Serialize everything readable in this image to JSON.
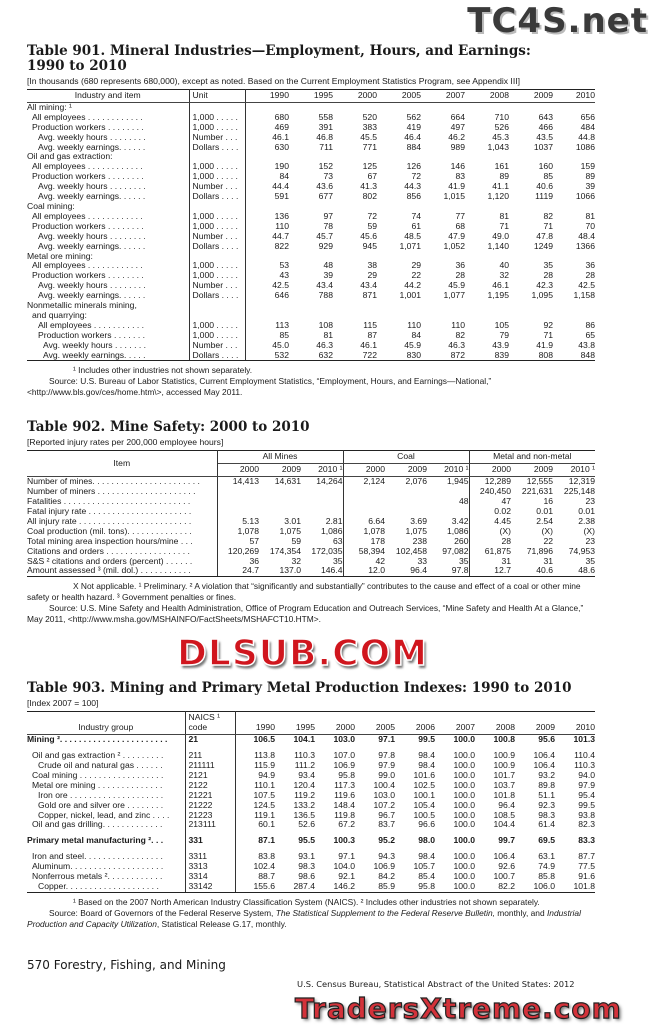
{
  "watermarks": {
    "top": "TC4S.net",
    "middle": "DLSUB.COM",
    "bottom": "TradersXtreme.com"
  },
  "t901": {
    "title1": "Table 901. Mineral Industries—Employment, Hours, and Earnings:",
    "title2": "1990 to 2010",
    "subtitle": "[In thousands (680 represents 680,000), except as noted. Based on the Current Employment Statistics Program, see Appendix III]",
    "headers": [
      "Industry and item",
      "Unit",
      "1990",
      "1995",
      "2000",
      "2005",
      "2007",
      "2008",
      "2009",
      "2010"
    ],
    "rows": [
      {
        "label": "All mining: ¹",
        "lvl": 0,
        "group": true
      },
      {
        "label": "All employees . . . . . . . . . . . .",
        "unit": "1,000 . . . . .",
        "lvl": 1,
        "v": [
          "680",
          "558",
          "520",
          "562",
          "664",
          "710",
          "643",
          "656"
        ]
      },
      {
        "label": "Production workers . . . . . . . .",
        "unit": "1,000 . . . . .",
        "lvl": 1,
        "v": [
          "469",
          "391",
          "383",
          "419",
          "497",
          "526",
          "466",
          "484"
        ]
      },
      {
        "label": "Avg. weekly hours . . . . . . . .",
        "unit": "Number . . .",
        "lvl": 2,
        "v": [
          "46.1",
          "46.8",
          "45.5",
          "46.4",
          "46.2",
          "45.3",
          "43.5",
          "44.8"
        ]
      },
      {
        "label": "Avg. weekly earnings. . . . . .",
        "unit": "Dollars . . . .",
        "lvl": 2,
        "v": [
          "630",
          "711",
          "771",
          "884",
          "989",
          "1,043",
          "1037",
          "1086"
        ]
      },
      {
        "label": "Oil and gas extraction:",
        "lvl": 0,
        "group": true
      },
      {
        "label": "All employees . . . . . . . . . . . .",
        "unit": "1,000 . . . . .",
        "lvl": 1,
        "v": [
          "190",
          "152",
          "125",
          "126",
          "146",
          "161",
          "160",
          "159"
        ]
      },
      {
        "label": "Production workers . . . . . . . .",
        "unit": "1,000 . . . . .",
        "lvl": 1,
        "v": [
          "84",
          "73",
          "67",
          "72",
          "83",
          "89",
          "85",
          "89"
        ]
      },
      {
        "label": "Avg. weekly hours . . . . . . . .",
        "unit": "Number . . .",
        "lvl": 2,
        "v": [
          "44.4",
          "43.6",
          "41.3",
          "44.3",
          "41.9",
          "41.1",
          "40.6",
          "39"
        ]
      },
      {
        "label": "Avg. weekly earnings. . . . . .",
        "unit": "Dollars . . . .",
        "lvl": 2,
        "v": [
          "591",
          "677",
          "802",
          "856",
          "1,015",
          "1,120",
          "1119",
          "1066"
        ]
      },
      {
        "label": "Coal mining:",
        "lvl": 0,
        "group": true
      },
      {
        "label": "All employees . . . . . . . . . . . .",
        "unit": "1,000 . . . . .",
        "lvl": 1,
        "v": [
          "136",
          "97",
          "72",
          "74",
          "77",
          "81",
          "82",
          "81"
        ]
      },
      {
        "label": "Production workers . . . . . . . .",
        "unit": "1,000 . . . . .",
        "lvl": 1,
        "v": [
          "110",
          "78",
          "59",
          "61",
          "68",
          "71",
          "71",
          "70"
        ]
      },
      {
        "label": "Avg. weekly hours . . . . . . . .",
        "unit": "Number . . .",
        "lvl": 2,
        "v": [
          "44.7",
          "45.7",
          "45.6",
          "48.5",
          "47.9",
          "49.0",
          "47.8",
          "48.4"
        ]
      },
      {
        "label": "Avg. weekly earnings. . . . . .",
        "unit": "Dollars . . . .",
        "lvl": 2,
        "v": [
          "822",
          "929",
          "945",
          "1,071",
          "1,052",
          "1,140",
          "1249",
          "1366"
        ]
      },
      {
        "label": "Metal ore mining:",
        "lvl": 0,
        "group": true
      },
      {
        "label": "All employees . . . . . . . . . . . .",
        "unit": "1,000 . . . . .",
        "lvl": 1,
        "v": [
          "53",
          "48",
          "38",
          "29",
          "36",
          "40",
          "35",
          "36"
        ]
      },
      {
        "label": "Production workers . . . . . . . .",
        "unit": "1,000 . . . . .",
        "lvl": 1,
        "v": [
          "43",
          "39",
          "29",
          "22",
          "28",
          "32",
          "28",
          "28"
        ]
      },
      {
        "label": "Avg. weekly hours . . . . . . . .",
        "unit": "Number . . .",
        "lvl": 2,
        "v": [
          "42.5",
          "43.4",
          "43.4",
          "44.2",
          "45.9",
          "46.1",
          "42.3",
          "42.5"
        ]
      },
      {
        "label": "Avg. weekly earnings. . . . . .",
        "unit": "Dollars . . . .",
        "lvl": 2,
        "v": [
          "646",
          "788",
          "871",
          "1,001",
          "1,077",
          "1,195",
          "1,095",
          "1,158"
        ]
      },
      {
        "label": "Nonmetallic minerals mining,",
        "lvl": 0,
        "group": true
      },
      {
        "label": "and quarrying:",
        "lvl": 1,
        "group": true
      },
      {
        "label": "All employees . . . . . . . . . . .",
        "unit": "1,000 . . . . .",
        "lvl": 2,
        "v": [
          "113",
          "108",
          "115",
          "110",
          "110",
          "105",
          "92",
          "86"
        ]
      },
      {
        "label": "Production workers . . . . . . .",
        "unit": "1,000 . . . . .",
        "lvl": 2,
        "v": [
          "85",
          "81",
          "87",
          "84",
          "82",
          "79",
          "71",
          "65"
        ]
      },
      {
        "label": "Avg. weekly hours . . . . . . .",
        "unit": "Number . . .",
        "lvl": 3,
        "v": [
          "45.0",
          "46.3",
          "46.1",
          "45.9",
          "46.3",
          "43.9",
          "41.9",
          "43.8"
        ]
      },
      {
        "label": "Avg. weekly earnings. . . . .",
        "unit": "Dollars . . . .",
        "lvl": 3,
        "v": [
          "532",
          "632",
          "722",
          "830",
          "872",
          "839",
          "808",
          "848"
        ]
      }
    ],
    "notes": [
      "¹ Includes other industries not shown separately.",
      "Source: U.S. Bureau of Labor Statistics, Current Employment Statistics, “Employment, Hours, and Earnings—National,” <http://www.bls.gov/ces/home.htm\\>, accessed May 2011."
    ]
  },
  "t902": {
    "title": "Table 902. Mine Safety: 2000 to 2010",
    "subtitle": "[Reported injury rates per 200,000 employee hours]",
    "item_header": "Item",
    "groups": [
      "All Mines",
      "Coal",
      "Metal and non-metal"
    ],
    "years": [
      "2000",
      "2009",
      "2010 ¹",
      "2000",
      "2009",
      "2010 ¹",
      "2000",
      "2009",
      "2010 ¹"
    ],
    "rows": [
      {
        "label": "Number of mines. . . . . . . . . . . . . . . . . . . . . . .",
        "v": [
          "14,413",
          "14,631",
          "14,264",
          "2,124",
          "2,076",
          "1,945",
          "12,289",
          "12,555",
          "12,319"
        ]
      },
      {
        "label": "Number of miners . . . . . . . . . . . . . . . . . . . . .",
        "v": [
          "",
          "",
          "",
          "",
          "",
          "",
          "240,450",
          "221,631",
          "225,148"
        ]
      },
      {
        "label": "Fatalities . . . . . . . . . . . . . . . . . . . . . . . . . . .",
        "v": [
          "",
          "",
          "",
          "",
          "",
          "48",
          "47",
          "16",
          "23"
        ]
      },
      {
        "label": "Fatal injury rate . . . . . . . . . . . . . . . . . . . . . .",
        "v": [
          "",
          "",
          "",
          "",
          "",
          "",
          "0.02",
          "0.01",
          "0.01"
        ]
      },
      {
        "label": "All injury rate . . . . . . . . . . . . . . . . . . . . . . . .",
        "v": [
          "5.13",
          "3.01",
          "2.81",
          "6.64",
          "3.69",
          "3.42",
          "4.45",
          "2.54",
          "2.38"
        ]
      },
      {
        "label": "Coal production (mil. tons). . . . . . . . . . . . . .",
        "v": [
          "1,078",
          "1,075",
          "1,086",
          "1,078",
          "1,075",
          "1,086",
          "(X)",
          "(X)",
          "(X)"
        ]
      },
      {
        "label": "Total mining area inspection hours/mine . . .",
        "v": [
          "57",
          "59",
          "63",
          "178",
          "238",
          "260",
          "28",
          "22",
          "23"
        ]
      },
      {
        "label": "Citations and orders  . . . . . . . . . . . . . . . . . .",
        "v": [
          "120,269",
          "174,354",
          "172,035",
          "58,394",
          "102,458",
          "97,082",
          "61,875",
          "71,896",
          "74,953"
        ]
      },
      {
        "label": "S&S ² citations and orders (percent) . . . . . .",
        "v": [
          "36",
          "32",
          "35",
          "42",
          "33",
          "35",
          "31",
          "31",
          "35"
        ]
      },
      {
        "label": "Amount assessed ³ (mil. dol.) . . . . . . . . . . .",
        "v": [
          "24.7",
          "137.0",
          "146.4",
          "12.0",
          "96.4",
          "97.8",
          "12.7",
          "40.6",
          "48.6"
        ]
      }
    ],
    "notes": [
      "X Not applicable. ¹ Preliminary. ² A violation that “significantly and substantially” contributes to the cause and effect of a coal or other mine safety or health hazard. ³ Government penalties or fines.",
      "Source: U.S. Mine Safety and Health Administration, Office of Program Education and Outreach Services, “Mine Safety and Health At a Glance,” May 2011, <http://www.msha.gov/MSHAINFO/FactSheets/MSHAFCT10.HTM>."
    ]
  },
  "t903": {
    "title": "Table 903. Mining and Primary Metal Production Indexes: 1990 to 2010",
    "subtitle": "[Index 2007 = 100]",
    "headers": [
      "Industry group",
      "NAICS ¹ code",
      "1990",
      "1995",
      "2000",
      "2005",
      "2006",
      "2007",
      "2008",
      "2009",
      "2010"
    ],
    "rows": [
      {
        "label": "Mining ². . . . . . . . . . . . . . . . . . . . . . .",
        "code": "21",
        "lvl": 0,
        "bold": true,
        "v": [
          "106.5",
          "104.1",
          "103.0",
          "97.1",
          "99.5",
          "100.0",
          "100.8",
          "95.6",
          "101.3"
        ]
      },
      {
        "gap": true
      },
      {
        "label": "Oil and gas extraction ² . . . . . . . . .",
        "code": "211",
        "lvl": 1,
        "v": [
          "113.8",
          "110.3",
          "107.0",
          "97.8",
          "98.4",
          "100.0",
          "100.9",
          "106.4",
          "110.4"
        ]
      },
      {
        "label": "Crude oil and natural gas  . . . . . .",
        "code": "211111",
        "lvl": 2,
        "v": [
          "115.9",
          "111.2",
          "106.9",
          "97.9",
          "98.4",
          "100.0",
          "100.9",
          "106.4",
          "110.3"
        ]
      },
      {
        "label": "Coal mining . . . . . . . . . . . . . . . . . .",
        "code": "2121",
        "lvl": 1,
        "v": [
          "94.9",
          "93.4",
          "95.8",
          "99.0",
          "101.6",
          "100.0",
          "101.7",
          "93.2",
          "94.0"
        ]
      },
      {
        "label": "Metal ore mining . . . . . . . . . . . . . .",
        "code": "2122",
        "lvl": 1,
        "v": [
          "110.1",
          "120.4",
          "117.3",
          "100.4",
          "102.5",
          "100.0",
          "103.7",
          "89.8",
          "97.9"
        ]
      },
      {
        "label": "Iron ore  . . . . . . . . . . . . . . . . . . . .",
        "code": "21221",
        "lvl": 2,
        "v": [
          "107.5",
          "119.2",
          "119.6",
          "103.0",
          "100.1",
          "100.0",
          "101.8",
          "51.1",
          "95.4"
        ]
      },
      {
        "label": "Gold ore and silver ore  . . . . . . . .",
        "code": "21222",
        "lvl": 2,
        "v": [
          "124.5",
          "133.2",
          "148.4",
          "107.2",
          "105.4",
          "100.0",
          "96.4",
          "92.3",
          "99.5"
        ]
      },
      {
        "label": "Copper, nickel, lead, and zinc . . . .",
        "code": "21223",
        "lvl": 2,
        "v": [
          "119.1",
          "136.5",
          "119.8",
          "96.7",
          "100.5",
          "100.0",
          "108.5",
          "98.3",
          "93.8"
        ]
      },
      {
        "label": "Oil and gas drilling. . . . . . . . . . . . .",
        "code": "213111",
        "lvl": 1,
        "v": [
          "60.1",
          "52.6",
          "67.2",
          "83.7",
          "96.6",
          "100.0",
          "104.4",
          "61.4",
          "82.3"
        ]
      },
      {
        "gap": true
      },
      {
        "label": "Primary metal manufacturing ². . .",
        "code": "331",
        "lvl": 0,
        "bold": true,
        "v": [
          "87.1",
          "95.5",
          "100.3",
          "95.2",
          "98.0",
          "100.0",
          "99.7",
          "69.5",
          "83.3"
        ]
      },
      {
        "gap": true
      },
      {
        "label": "Iron and steel. . . . . . . . . . . . . . . . .",
        "code": "3311",
        "lvl": 1,
        "v": [
          "83.8",
          "93.1",
          "97.1",
          "94.3",
          "98.4",
          "100.0",
          "106.4",
          "63.1",
          "87.7"
        ]
      },
      {
        "label": "Aluminum. . . . . . . . . . . . . . . . . . . .",
        "code": "3313",
        "lvl": 1,
        "v": [
          "102.4",
          "98.3",
          "104.0",
          "106.9",
          "105.7",
          "100.0",
          "92.6",
          "74.9",
          "77.5"
        ]
      },
      {
        "label": "Nonferrous metals ². . . . . . . . . . . .",
        "code": "3314",
        "lvl": 1,
        "v": [
          "88.7",
          "98.6",
          "92.1",
          "84.2",
          "85.4",
          "100.0",
          "100.7",
          "85.8",
          "91.6"
        ]
      },
      {
        "label": "Copper. . . . . . . . . . . . . . . . . . . .",
        "code": "33142",
        "lvl": 2,
        "v": [
          "155.6",
          "287.4",
          "146.2",
          "85.9",
          "95.8",
          "100.0",
          "82.2",
          "106.0",
          "101.8"
        ]
      }
    ],
    "note1": "¹ Based on the 2007 North American Industry Classification System (NAICS). ² Includes other industries not shown separately.",
    "source_a": "Source: Board of Governors of the Federal Reserve System, ",
    "source_b": "The Statistical Supplement to the Federal Reserve Bulletin,",
    "source_c": " monthly, and ",
    "source_d": "Industrial Production and Capacity Utilization",
    "source_e": ", Statistical Release G.17, monthly."
  },
  "footer": {
    "page": "570  Forestry, Fishing, and Mining",
    "source": "U.S. Census Bureau, Statistical Abstract of the United States: 2012"
  }
}
